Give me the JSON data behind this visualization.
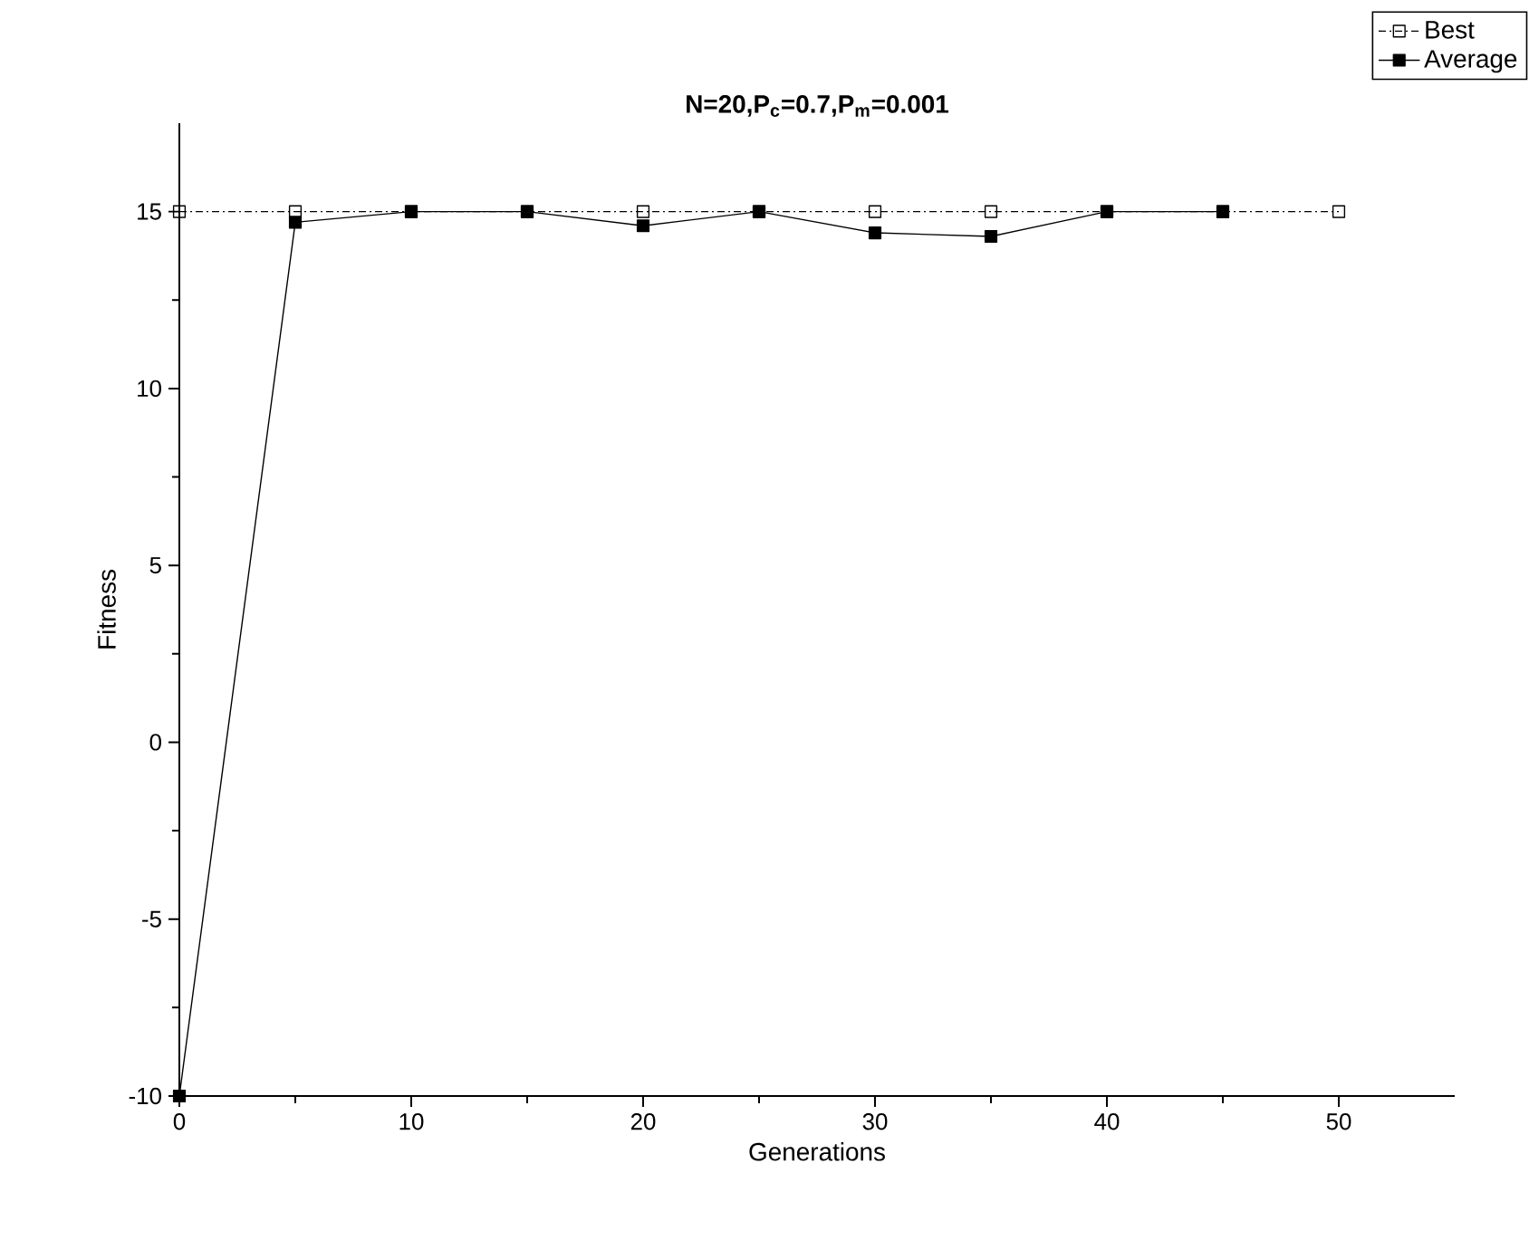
{
  "chart_data": {
    "type": "line",
    "title": "N=20,P$_{c}$=0.7,P$_{m}$=0.001",
    "xlabel": "Generations",
    "ylabel": "Fitness",
    "x": [
      0,
      5,
      10,
      15,
      20,
      25,
      30,
      35,
      40,
      45,
      50
    ],
    "series": [
      {
        "name": "Best",
        "color": "#000000",
        "line_style": "dashdot",
        "marker": "square_open",
        "values": [
          15,
          15,
          15,
          15,
          15,
          15,
          15,
          15,
          15,
          15,
          15
        ]
      },
      {
        "name": "Average",
        "color": "#000000",
        "line_style": "solid",
        "marker": "square",
        "values": [
          -10,
          14.7,
          15,
          15,
          14.6,
          15,
          14.4,
          14.3,
          15,
          15,
          null
        ]
      }
    ],
    "xlim": [
      0,
      55
    ],
    "ylim": [
      -10,
      17.5
    ],
    "xticks": [
      0,
      10,
      20,
      30,
      40,
      50
    ],
    "yticks": [
      -10,
      -5,
      0,
      5,
      10,
      15
    ],
    "grid": false,
    "legend": "top right"
  }
}
